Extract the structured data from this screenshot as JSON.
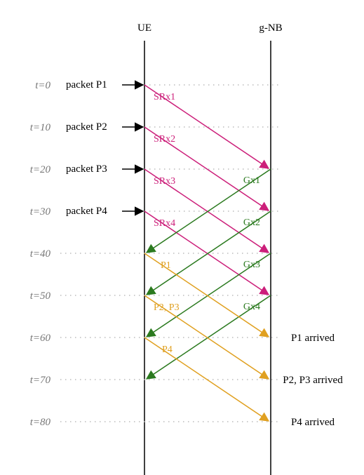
{
  "colors": {
    "sr": "#cc1f7a",
    "grant": "#2b7a1f",
    "data": "#e0a020",
    "line": "#000000",
    "time": "#777777",
    "grid": "#bbbbbb"
  },
  "columns": {
    "ue": "UE",
    "gnb": "g-NB"
  },
  "time_labels": [
    "t=0",
    "t=10",
    "t=20",
    "t=30",
    "t=40",
    "t=50",
    "t=60",
    "t=70",
    "t=80"
  ],
  "packets": [
    {
      "label": "packet P1",
      "time": 0
    },
    {
      "label": "packet P2",
      "time": 10
    },
    {
      "label": "packet P3",
      "time": 20
    },
    {
      "label": "packet P4",
      "time": 30
    }
  ],
  "sr_messages": [
    {
      "label": "SRx1",
      "from_time": 0,
      "to_time": 20
    },
    {
      "label": "SRx2",
      "from_time": 10,
      "to_time": 30
    },
    {
      "label": "SRx3",
      "from_time": 20,
      "to_time": 40
    },
    {
      "label": "SRx4",
      "from_time": 30,
      "to_time": 50
    }
  ],
  "grants": [
    {
      "label": "Gx1",
      "from_time": 20,
      "to_time": 40
    },
    {
      "label": "Gx2",
      "from_time": 30,
      "to_time": 50
    },
    {
      "label": "Gx3",
      "from_time": 40,
      "to_time": 60
    },
    {
      "label": "Gx4",
      "from_time": 50,
      "to_time": 70
    }
  ],
  "data_messages": [
    {
      "label": "P1",
      "from_time": 40,
      "to_time": 60
    },
    {
      "label": "P2, P3",
      "from_time": 50,
      "to_time": 70
    },
    {
      "label": "P4",
      "from_time": 60,
      "to_time": 80
    }
  ],
  "arrivals": [
    {
      "label": "P1 arrived",
      "time": 60
    },
    {
      "label": "P2, P3 arrived",
      "time": 70
    },
    {
      "label": "P4 arrived",
      "time": 80
    }
  ]
}
